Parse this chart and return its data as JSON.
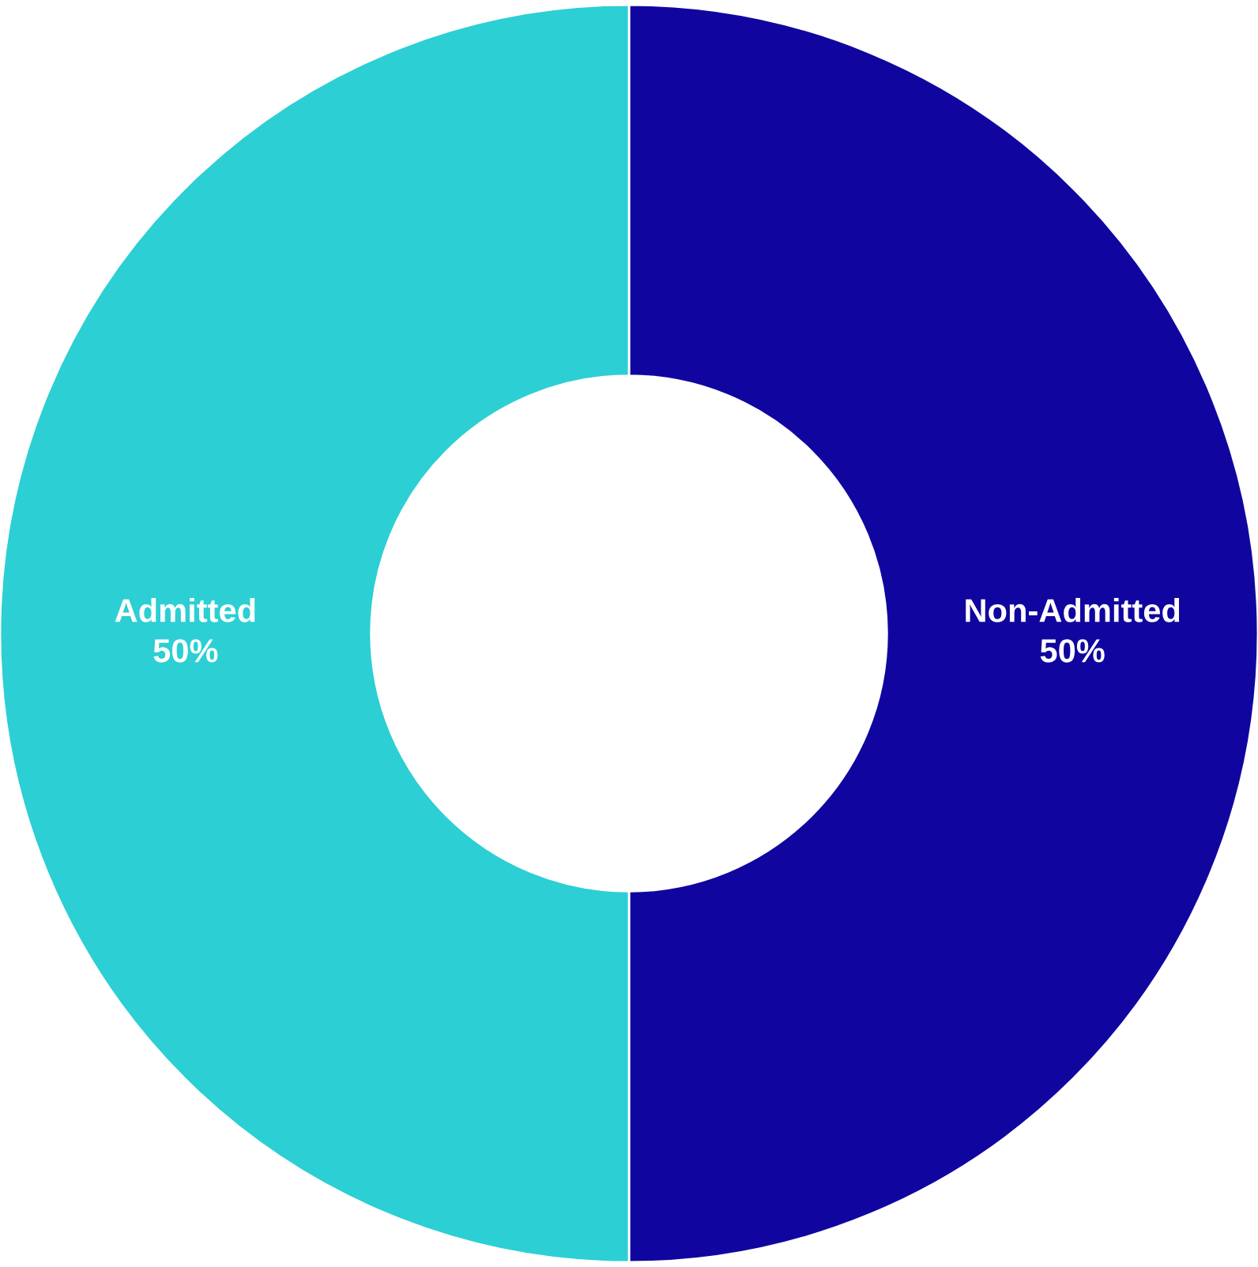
{
  "chart_data": {
    "type": "donut",
    "categories": [
      "Non-Admitted",
      "Admitted"
    ],
    "values": [
      50,
      50
    ],
    "colors": [
      "#10069f",
      "#2ccfd3"
    ],
    "value_labels": [
      "50%",
      "50%"
    ],
    "legend": false
  }
}
